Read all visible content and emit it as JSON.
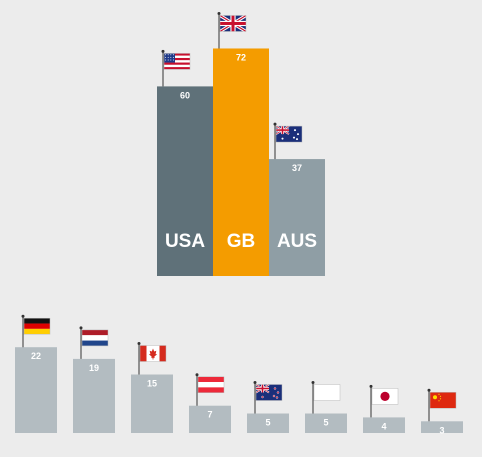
{
  "chart_data": [
    {
      "type": "bar",
      "categories": [
        "USA",
        "GB",
        "AUS"
      ],
      "values": [
        60,
        72,
        37
      ],
      "flags": [
        "flag-usa-icon",
        "flag-gb-icon",
        "flag-aus-icon"
      ],
      "colors": [
        "#5f7179",
        "#f49c00",
        "#8f9ea5"
      ],
      "label_color": "#ffffff"
    },
    {
      "type": "bar",
      "categories": [
        "",
        "",
        "",
        "",
        "",
        "",
        "",
        ""
      ],
      "values": [
        22,
        19,
        15,
        7,
        5,
        5,
        4,
        3
      ],
      "flags": [
        "flag-germany-icon",
        "flag-netherlands-icon",
        "flag-canada-icon",
        "flag-austria-icon",
        "flag-new-zealand-icon",
        "flag-white-icon",
        "flag-japan-icon",
        "flag-china-icon"
      ],
      "colors": [
        "#b3bcc1"
      ],
      "label_color": "#ffffff"
    }
  ]
}
